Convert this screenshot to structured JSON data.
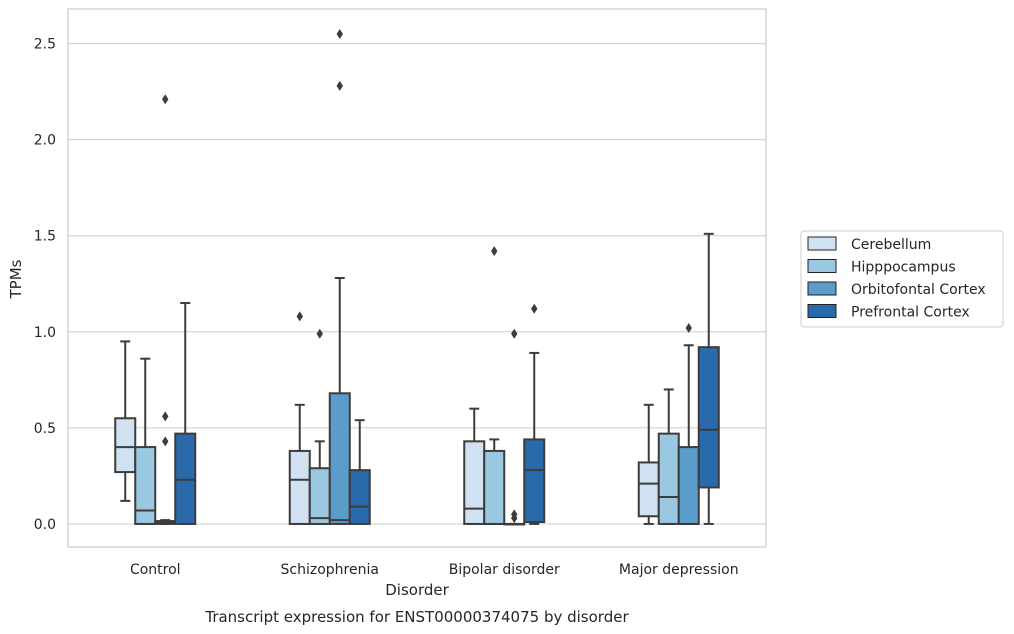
{
  "chart_data": {
    "type": "box",
    "caption": "Transcript expression for ENST00000374075 by disorder",
    "xlabel": "Disorder",
    "ylabel": "TPMs",
    "ylim": [
      -0.12,
      2.68
    ],
    "yticks": [
      0.0,
      0.5,
      1.0,
      1.5,
      2.0,
      2.5
    ],
    "ytick_labels": [
      "0.0",
      "0.5",
      "1.0",
      "1.5",
      "2.0",
      "2.5"
    ],
    "grid": "horizontal",
    "legend_position": "right",
    "categories": [
      "Control",
      "Schizophrenia",
      "Bipolar disorder",
      "Major depression"
    ],
    "series": [
      {
        "name": "Cerebellum",
        "color": "#d0e1f2",
        "boxes": [
          {
            "whisker_low": 0.12,
            "q1": 0.27,
            "median": 0.4,
            "q3": 0.55,
            "whisker_high": 0.95,
            "outliers": []
          },
          {
            "whisker_low": 0.0,
            "q1": 0.0,
            "median": 0.23,
            "q3": 0.38,
            "whisker_high": 0.62,
            "outliers": [
              1.08
            ]
          },
          {
            "whisker_low": 0.0,
            "q1": 0.0,
            "median": 0.08,
            "q3": 0.43,
            "whisker_high": 0.6,
            "outliers": []
          },
          {
            "whisker_low": 0.0,
            "q1": 0.04,
            "median": 0.21,
            "q3": 0.32,
            "whisker_high": 0.62,
            "outliers": []
          }
        ]
      },
      {
        "name": "Hipppocampus",
        "color": "#9ac8e0",
        "boxes": [
          {
            "whisker_low": 0.0,
            "q1": 0.0,
            "median": 0.07,
            "q3": 0.4,
            "whisker_high": 0.86,
            "outliers": []
          },
          {
            "whisker_low": 0.0,
            "q1": 0.0,
            "median": 0.03,
            "q3": 0.29,
            "whisker_high": 0.43,
            "outliers": [
              0.99
            ]
          },
          {
            "whisker_low": 0.0,
            "q1": 0.0,
            "median": 0.0,
            "q3": 0.38,
            "whisker_high": 0.44,
            "outliers": [
              1.42
            ]
          },
          {
            "whisker_low": 0.0,
            "q1": 0.0,
            "median": 0.14,
            "q3": 0.47,
            "whisker_high": 0.7,
            "outliers": []
          }
        ]
      },
      {
        "name": "Orbitofontal Cortex",
        "color": "#5a9dcb",
        "boxes": [
          {
            "whisker_low": 0.0,
            "q1": 0.0,
            "median": 0.01,
            "q3": 0.015,
            "whisker_high": 0.02,
            "outliers": [
              0.43,
              0.56,
              2.21
            ]
          },
          {
            "whisker_low": 0.0,
            "q1": 0.0,
            "median": 0.02,
            "q3": 0.68,
            "whisker_high": 1.28,
            "outliers": [
              2.28,
              2.55
            ]
          },
          {
            "whisker_low": 0.0,
            "q1": 0.0,
            "median": 0.0,
            "q3": 0.0,
            "whisker_high": 0.0,
            "outliers": [
              0.03,
              0.05,
              0.99
            ]
          },
          {
            "whisker_low": 0.0,
            "q1": 0.0,
            "median": 0.0,
            "q3": 0.4,
            "whisker_high": 0.93,
            "outliers": [
              1.02
            ]
          }
        ]
      },
      {
        "name": "Prefrontal Cortex",
        "color": "#2a6aab",
        "boxes": [
          {
            "whisker_low": 0.0,
            "q1": 0.0,
            "median": 0.23,
            "q3": 0.47,
            "whisker_high": 1.15,
            "outliers": []
          },
          {
            "whisker_low": 0.0,
            "q1": 0.0,
            "median": 0.09,
            "q3": 0.28,
            "whisker_high": 0.54,
            "outliers": []
          },
          {
            "whisker_low": 0.0,
            "q1": 0.01,
            "median": 0.28,
            "q3": 0.44,
            "whisker_high": 0.89,
            "outliers": [
              1.12
            ]
          },
          {
            "whisker_low": 0.0,
            "q1": 0.19,
            "median": 0.49,
            "q3": 0.92,
            "whisker_high": 1.51,
            "outliers": []
          }
        ]
      }
    ]
  }
}
